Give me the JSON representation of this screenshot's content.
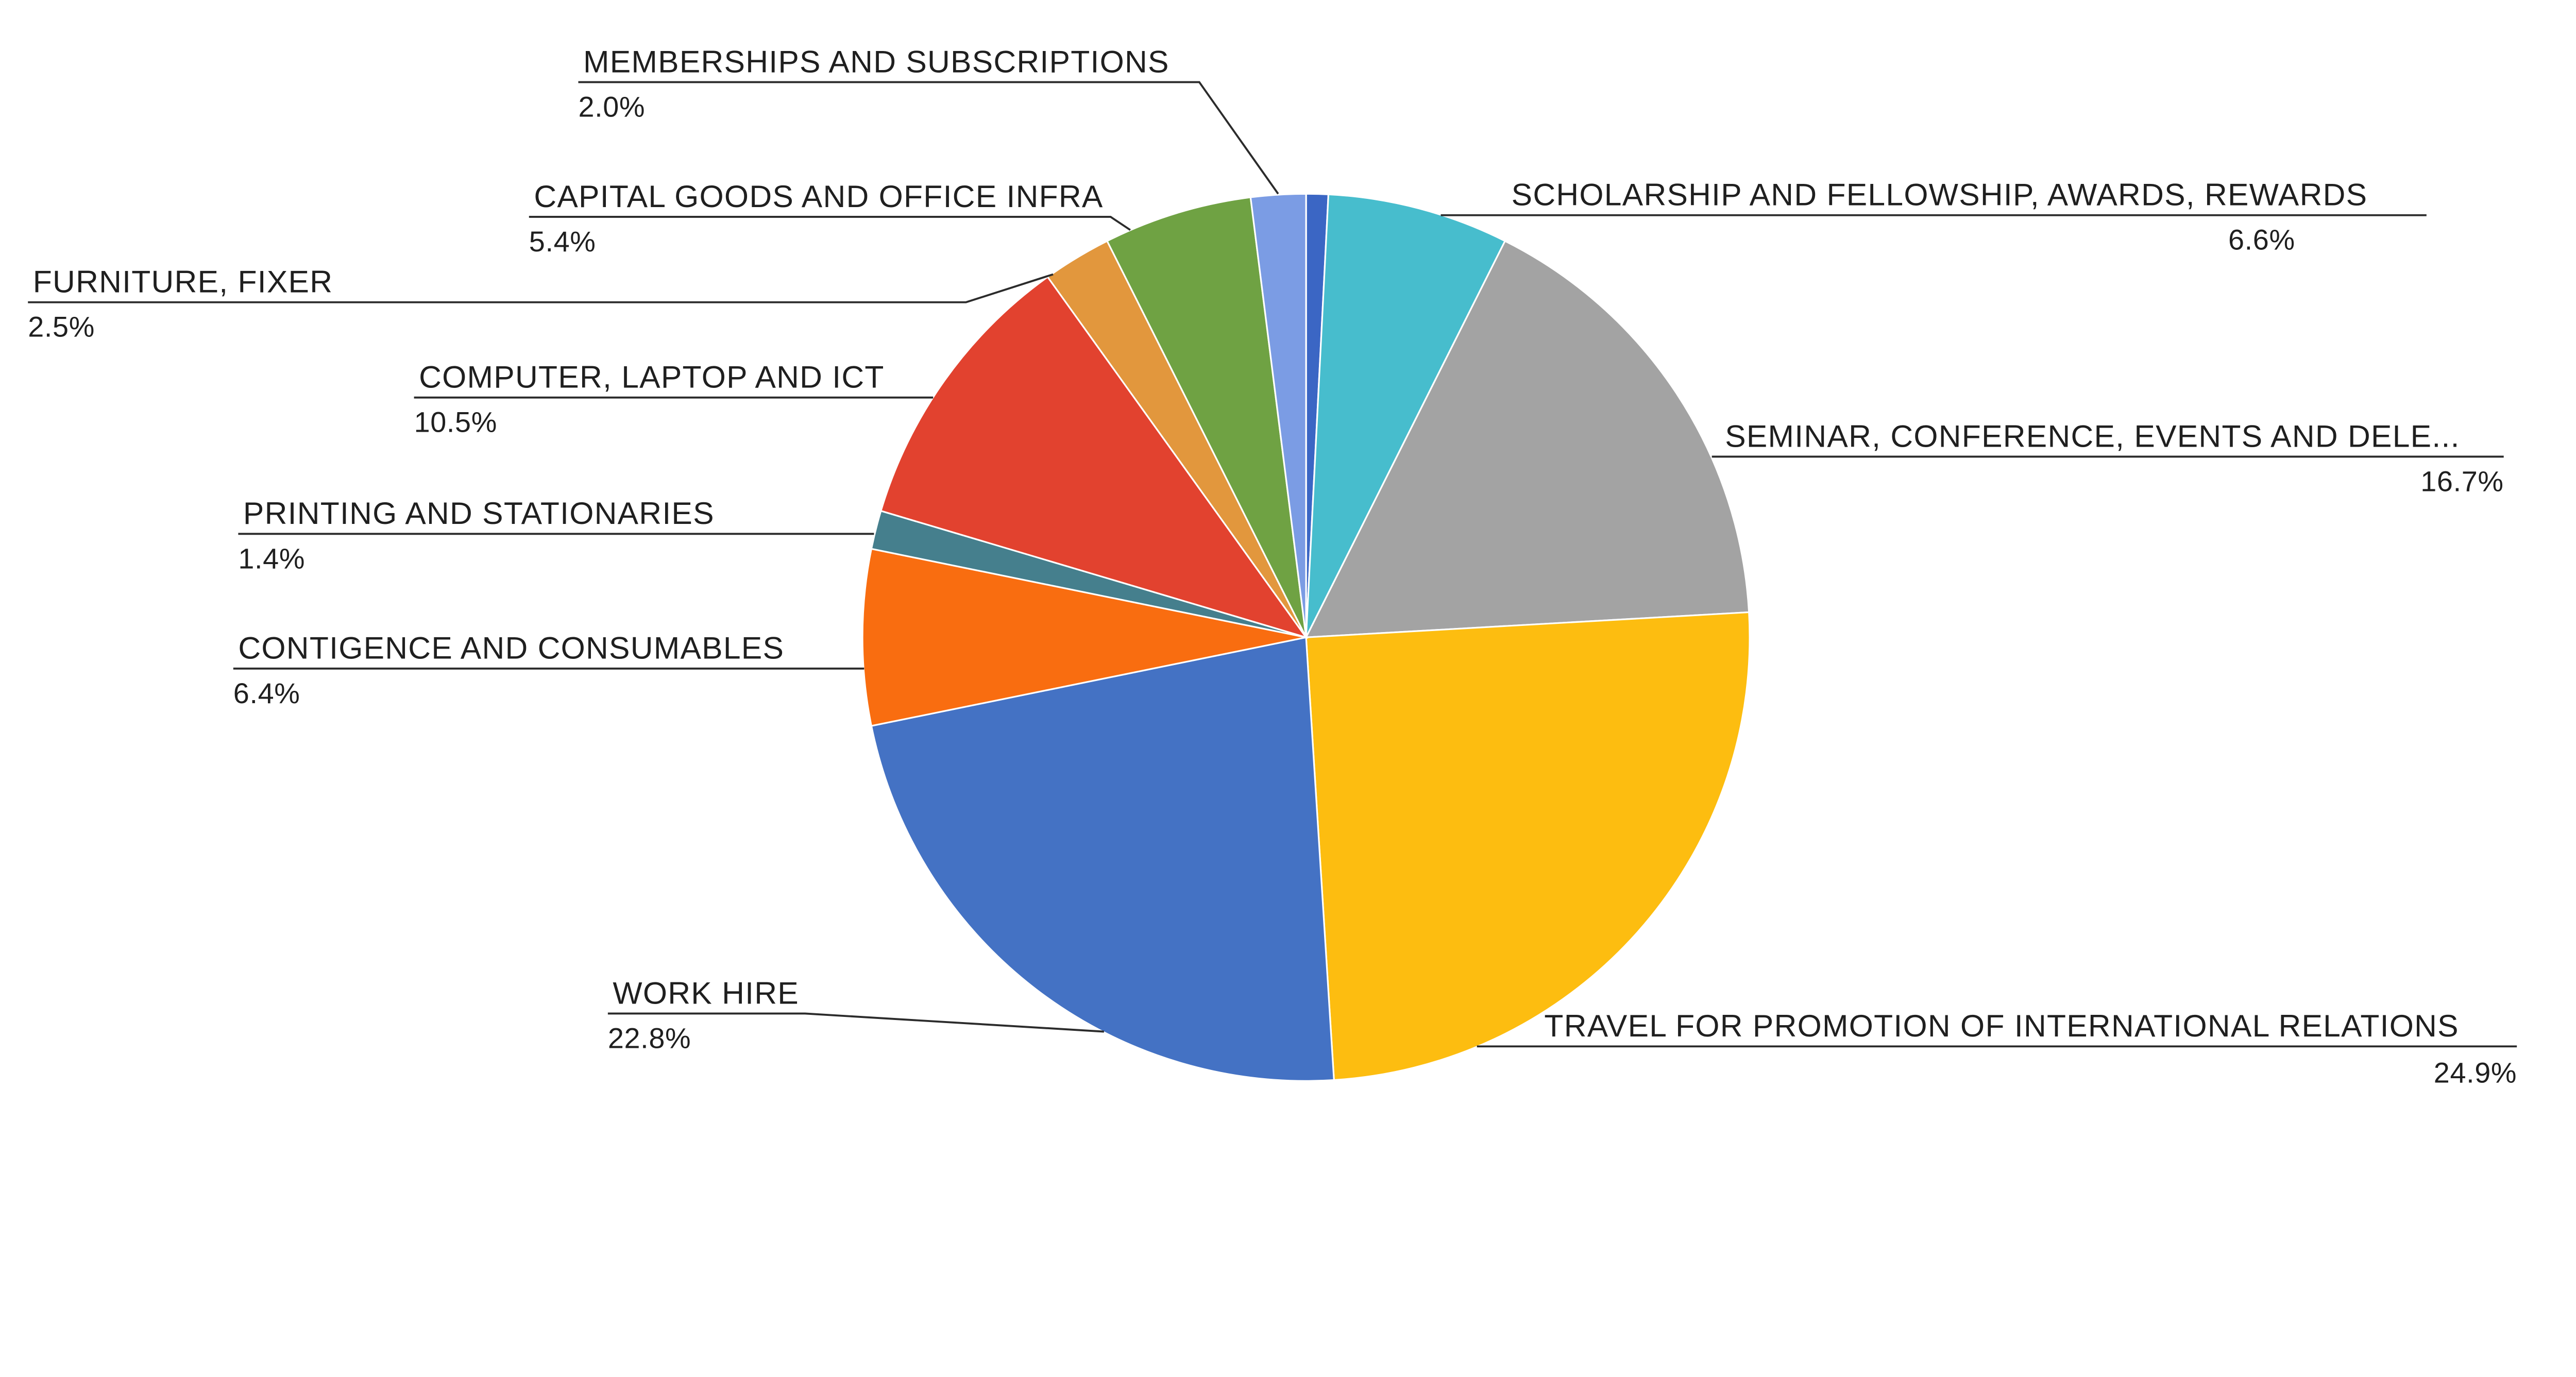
{
  "chart_data": {
    "type": "pie",
    "title": "",
    "legend": "none",
    "labels_style": "outside-with-leader-lines",
    "direction": "clockwise",
    "start_angle_deg": 0,
    "unit": "%",
    "slices": [
      {
        "label": "",
        "value": 0.8,
        "display_pct": "",
        "color": "#3B66C4"
      },
      {
        "label": "SCHOLARSHIP AND FELLOWSHIP, AWARDS, REWARDS",
        "value": 6.6,
        "display_pct": "6.6%",
        "color": "#47BDCD"
      },
      {
        "label": "SEMINAR, CONFERENCE, EVENTS AND DELE...",
        "value": 16.7,
        "display_pct": "16.7%",
        "color": "#A3A3A3"
      },
      {
        "label": "TRAVEL FOR PROMOTION OF INTERNATIONAL RELATIONS",
        "value": 24.9,
        "display_pct": "24.9%",
        "color": "#FDBD10"
      },
      {
        "label": "WORK HIRE",
        "value": 22.8,
        "display_pct": "22.8%",
        "color": "#4472C4"
      },
      {
        "label": "CONTIGENCE AND CONSUMABLES",
        "value": 6.4,
        "display_pct": "6.4%",
        "color": "#F96D10"
      },
      {
        "label": "PRINTING AND STATIONARIES",
        "value": 1.4,
        "display_pct": "1.4%",
        "color": "#457F8D"
      },
      {
        "label": "COMPUTER, LAPTOP AND ICT",
        "value": 10.5,
        "display_pct": "10.5%",
        "color": "#E2422F"
      },
      {
        "label": "FURNITURE, FIXER",
        "value": 2.5,
        "display_pct": "2.5%",
        "color": "#E2973D"
      },
      {
        "label": "CAPITAL GOODS AND OFFICE INFRA",
        "value": 5.4,
        "display_pct": "5.4%",
        "color": "#6FA243"
      },
      {
        "label": "MEMBERSHIPS AND SUBSCRIPTIONS",
        "value": 2.0,
        "display_pct": "2.0%",
        "color": "#7B9CE4"
      }
    ]
  }
}
